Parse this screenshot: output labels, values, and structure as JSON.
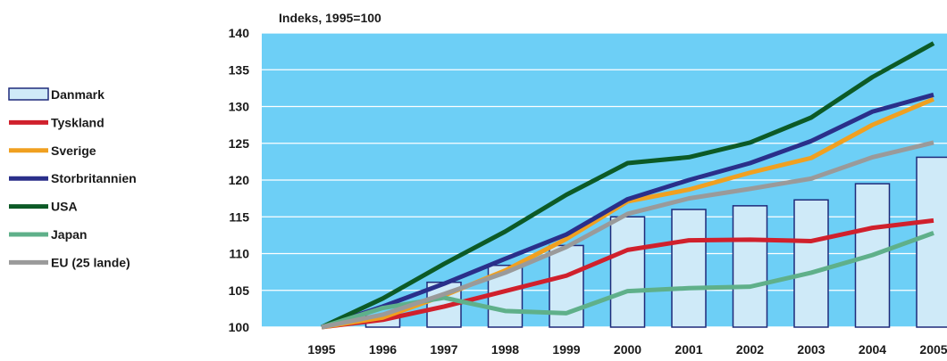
{
  "chart_data": {
    "type": "bar",
    "ylabel": "Indeks, 1995=100",
    "xlabel": "",
    "categories": [
      "1995",
      "1996",
      "1997",
      "1998",
      "1999",
      "2000",
      "2001",
      "2002",
      "2003",
      "2004",
      "2005"
    ],
    "ylim": [
      100,
      140
    ],
    "yticks": [
      100,
      105,
      110,
      115,
      120,
      125,
      130,
      135,
      140
    ],
    "grid": true,
    "legend_position": "left",
    "plot_background": "#6dcff6",
    "bar_series": {
      "name": "Danmark",
      "color": "#cfeaf8",
      "edge_color": "#1f2a7a",
      "values": [
        100,
        101.5,
        106.1,
        108.4,
        111.1,
        115.0,
        116.0,
        116.5,
        117.3,
        119.5,
        123.1
      ]
    },
    "line_series": [
      {
        "name": "Tyskland",
        "color": "#d0202c",
        "values": [
          100,
          101.0,
          102.8,
          104.9,
          107.0,
          110.5,
          111.8,
          111.9,
          111.7,
          113.5,
          114.5
        ]
      },
      {
        "name": "Sverige",
        "color": "#f0a020",
        "values": [
          100,
          101.3,
          104.3,
          107.7,
          112.0,
          117.1,
          118.7,
          121.0,
          123.0,
          127.5,
          131.0
        ]
      },
      {
        "name": "Storbritannien",
        "color": "#2a2f8a",
        "values": [
          100,
          102.8,
          105.9,
          109.3,
          112.6,
          117.4,
          120.0,
          122.3,
          125.3,
          129.3,
          131.6
        ]
      },
      {
        "name": "USA",
        "color": "#0c5a26",
        "values": [
          100,
          103.9,
          108.6,
          113.0,
          118.0,
          122.3,
          123.1,
          125.1,
          128.5,
          134.0,
          138.6
        ]
      },
      {
        "name": "Japan",
        "color": "#5fb08a",
        "values": [
          100,
          102.6,
          104.0,
          102.2,
          101.9,
          104.9,
          105.3,
          105.5,
          107.4,
          109.8,
          112.8
        ]
      },
      {
        "name": "EU (25 lande)",
        "color": "#9a9a9a",
        "values": [
          100,
          101.7,
          104.5,
          107.4,
          110.9,
          115.4,
          117.5,
          118.8,
          120.2,
          123.1,
          125.1
        ]
      }
    ]
  }
}
